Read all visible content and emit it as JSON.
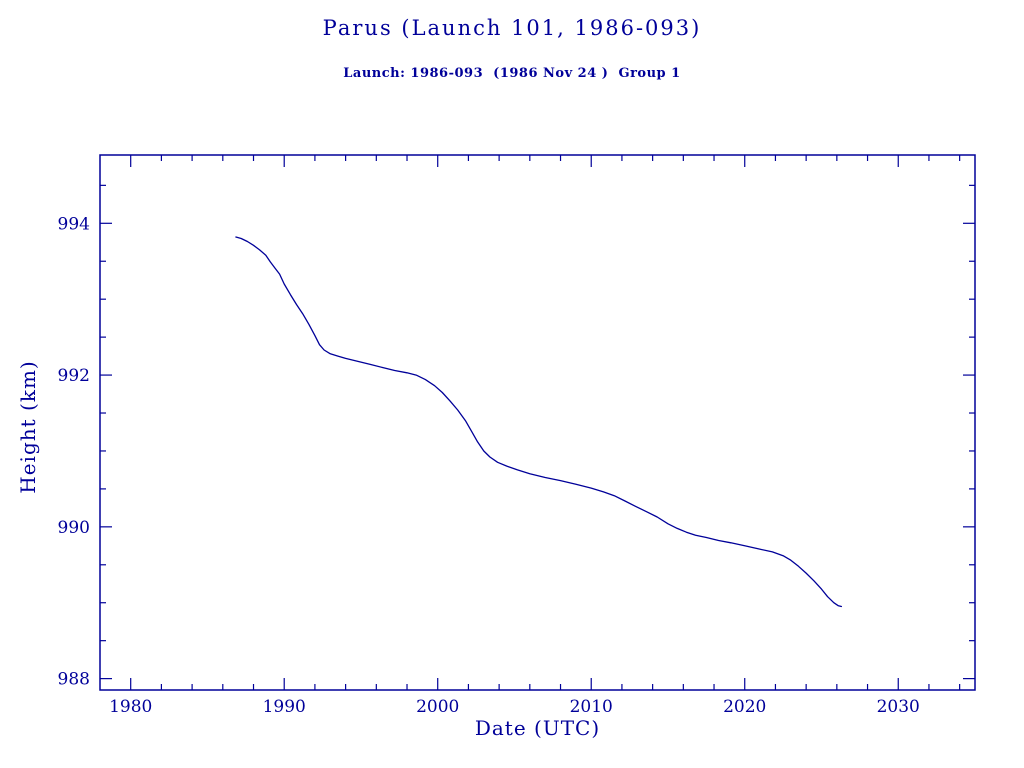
{
  "page": {
    "title": "Parus (Launch 101, 1986-093)",
    "subtitle": "Launch: 1986-093  (1986 Nov 24 )  Group 1"
  },
  "colors": {
    "accent": "#000099",
    "background": "#ffffff"
  },
  "chart_data": {
    "type": "line",
    "title": "Parus (Launch 101, 1986-093)",
    "subtitle": "Launch: 1986-093  (1986 Nov 24 )  Group 1",
    "xlabel": "Date (UTC)",
    "ylabel": "Height (km)",
    "xlim": [
      1978.0,
      2035.0
    ],
    "ylim": [
      987.85,
      994.9
    ],
    "xticks": [
      1980,
      1990,
      2000,
      2010,
      2020,
      2030
    ],
    "yticks": [
      988,
      990,
      992,
      994
    ],
    "minor_xtick_step": 2,
    "minor_ytick_step": 0.5,
    "grid": false,
    "legend": null,
    "line_color": "#000099",
    "series": [
      {
        "name": "height_km",
        "points": [
          [
            1986.85,
            993.82
          ],
          [
            1987.2,
            993.8
          ],
          [
            1987.6,
            993.76
          ],
          [
            1988.0,
            993.71
          ],
          [
            1988.4,
            993.65
          ],
          [
            1988.8,
            993.58
          ],
          [
            1989.1,
            993.49
          ],
          [
            1989.4,
            993.41
          ],
          [
            1989.7,
            993.33
          ],
          [
            1990.0,
            993.2
          ],
          [
            1990.4,
            993.06
          ],
          [
            1990.8,
            992.93
          ],
          [
            1991.2,
            992.81
          ],
          [
            1991.6,
            992.67
          ],
          [
            1992.0,
            992.52
          ],
          [
            1992.3,
            992.4
          ],
          [
            1992.6,
            992.33
          ],
          [
            1993.0,
            992.28
          ],
          [
            1993.5,
            992.25
          ],
          [
            1994.0,
            992.22
          ],
          [
            1994.8,
            992.18
          ],
          [
            1995.6,
            992.14
          ],
          [
            1996.4,
            992.1
          ],
          [
            1997.2,
            992.06
          ],
          [
            1998.0,
            992.03
          ],
          [
            1998.6,
            992.0
          ],
          [
            1999.2,
            991.94
          ],
          [
            1999.8,
            991.86
          ],
          [
            2000.3,
            991.77
          ],
          [
            2000.8,
            991.66
          ],
          [
            2001.3,
            991.54
          ],
          [
            2001.8,
            991.4
          ],
          [
            2002.2,
            991.26
          ],
          [
            2002.6,
            991.12
          ],
          [
            2003.0,
            991.0
          ],
          [
            2003.4,
            990.92
          ],
          [
            2003.9,
            990.85
          ],
          [
            2004.5,
            990.8
          ],
          [
            2005.2,
            990.75
          ],
          [
            2006.0,
            990.7
          ],
          [
            2007.0,
            990.65
          ],
          [
            2008.0,
            990.61
          ],
          [
            2009.0,
            990.56
          ],
          [
            2010.0,
            990.51
          ],
          [
            2010.8,
            990.46
          ],
          [
            2011.5,
            990.41
          ],
          [
            2012.2,
            990.34
          ],
          [
            2012.9,
            990.27
          ],
          [
            2013.6,
            990.2
          ],
          [
            2014.3,
            990.13
          ],
          [
            2015.0,
            990.04
          ],
          [
            2015.6,
            989.98
          ],
          [
            2016.2,
            989.93
          ],
          [
            2016.8,
            989.89
          ],
          [
            2017.5,
            989.86
          ],
          [
            2018.3,
            989.82
          ],
          [
            2019.1,
            989.79
          ],
          [
            2020.0,
            989.75
          ],
          [
            2020.9,
            989.71
          ],
          [
            2021.8,
            989.67
          ],
          [
            2022.5,
            989.62
          ],
          [
            2023.0,
            989.56
          ],
          [
            2023.5,
            989.48
          ],
          [
            2024.0,
            989.39
          ],
          [
            2024.5,
            989.29
          ],
          [
            2025.0,
            989.18
          ],
          [
            2025.4,
            989.08
          ],
          [
            2025.8,
            989.0
          ],
          [
            2026.1,
            988.96
          ],
          [
            2026.3,
            988.95
          ]
        ]
      }
    ]
  }
}
